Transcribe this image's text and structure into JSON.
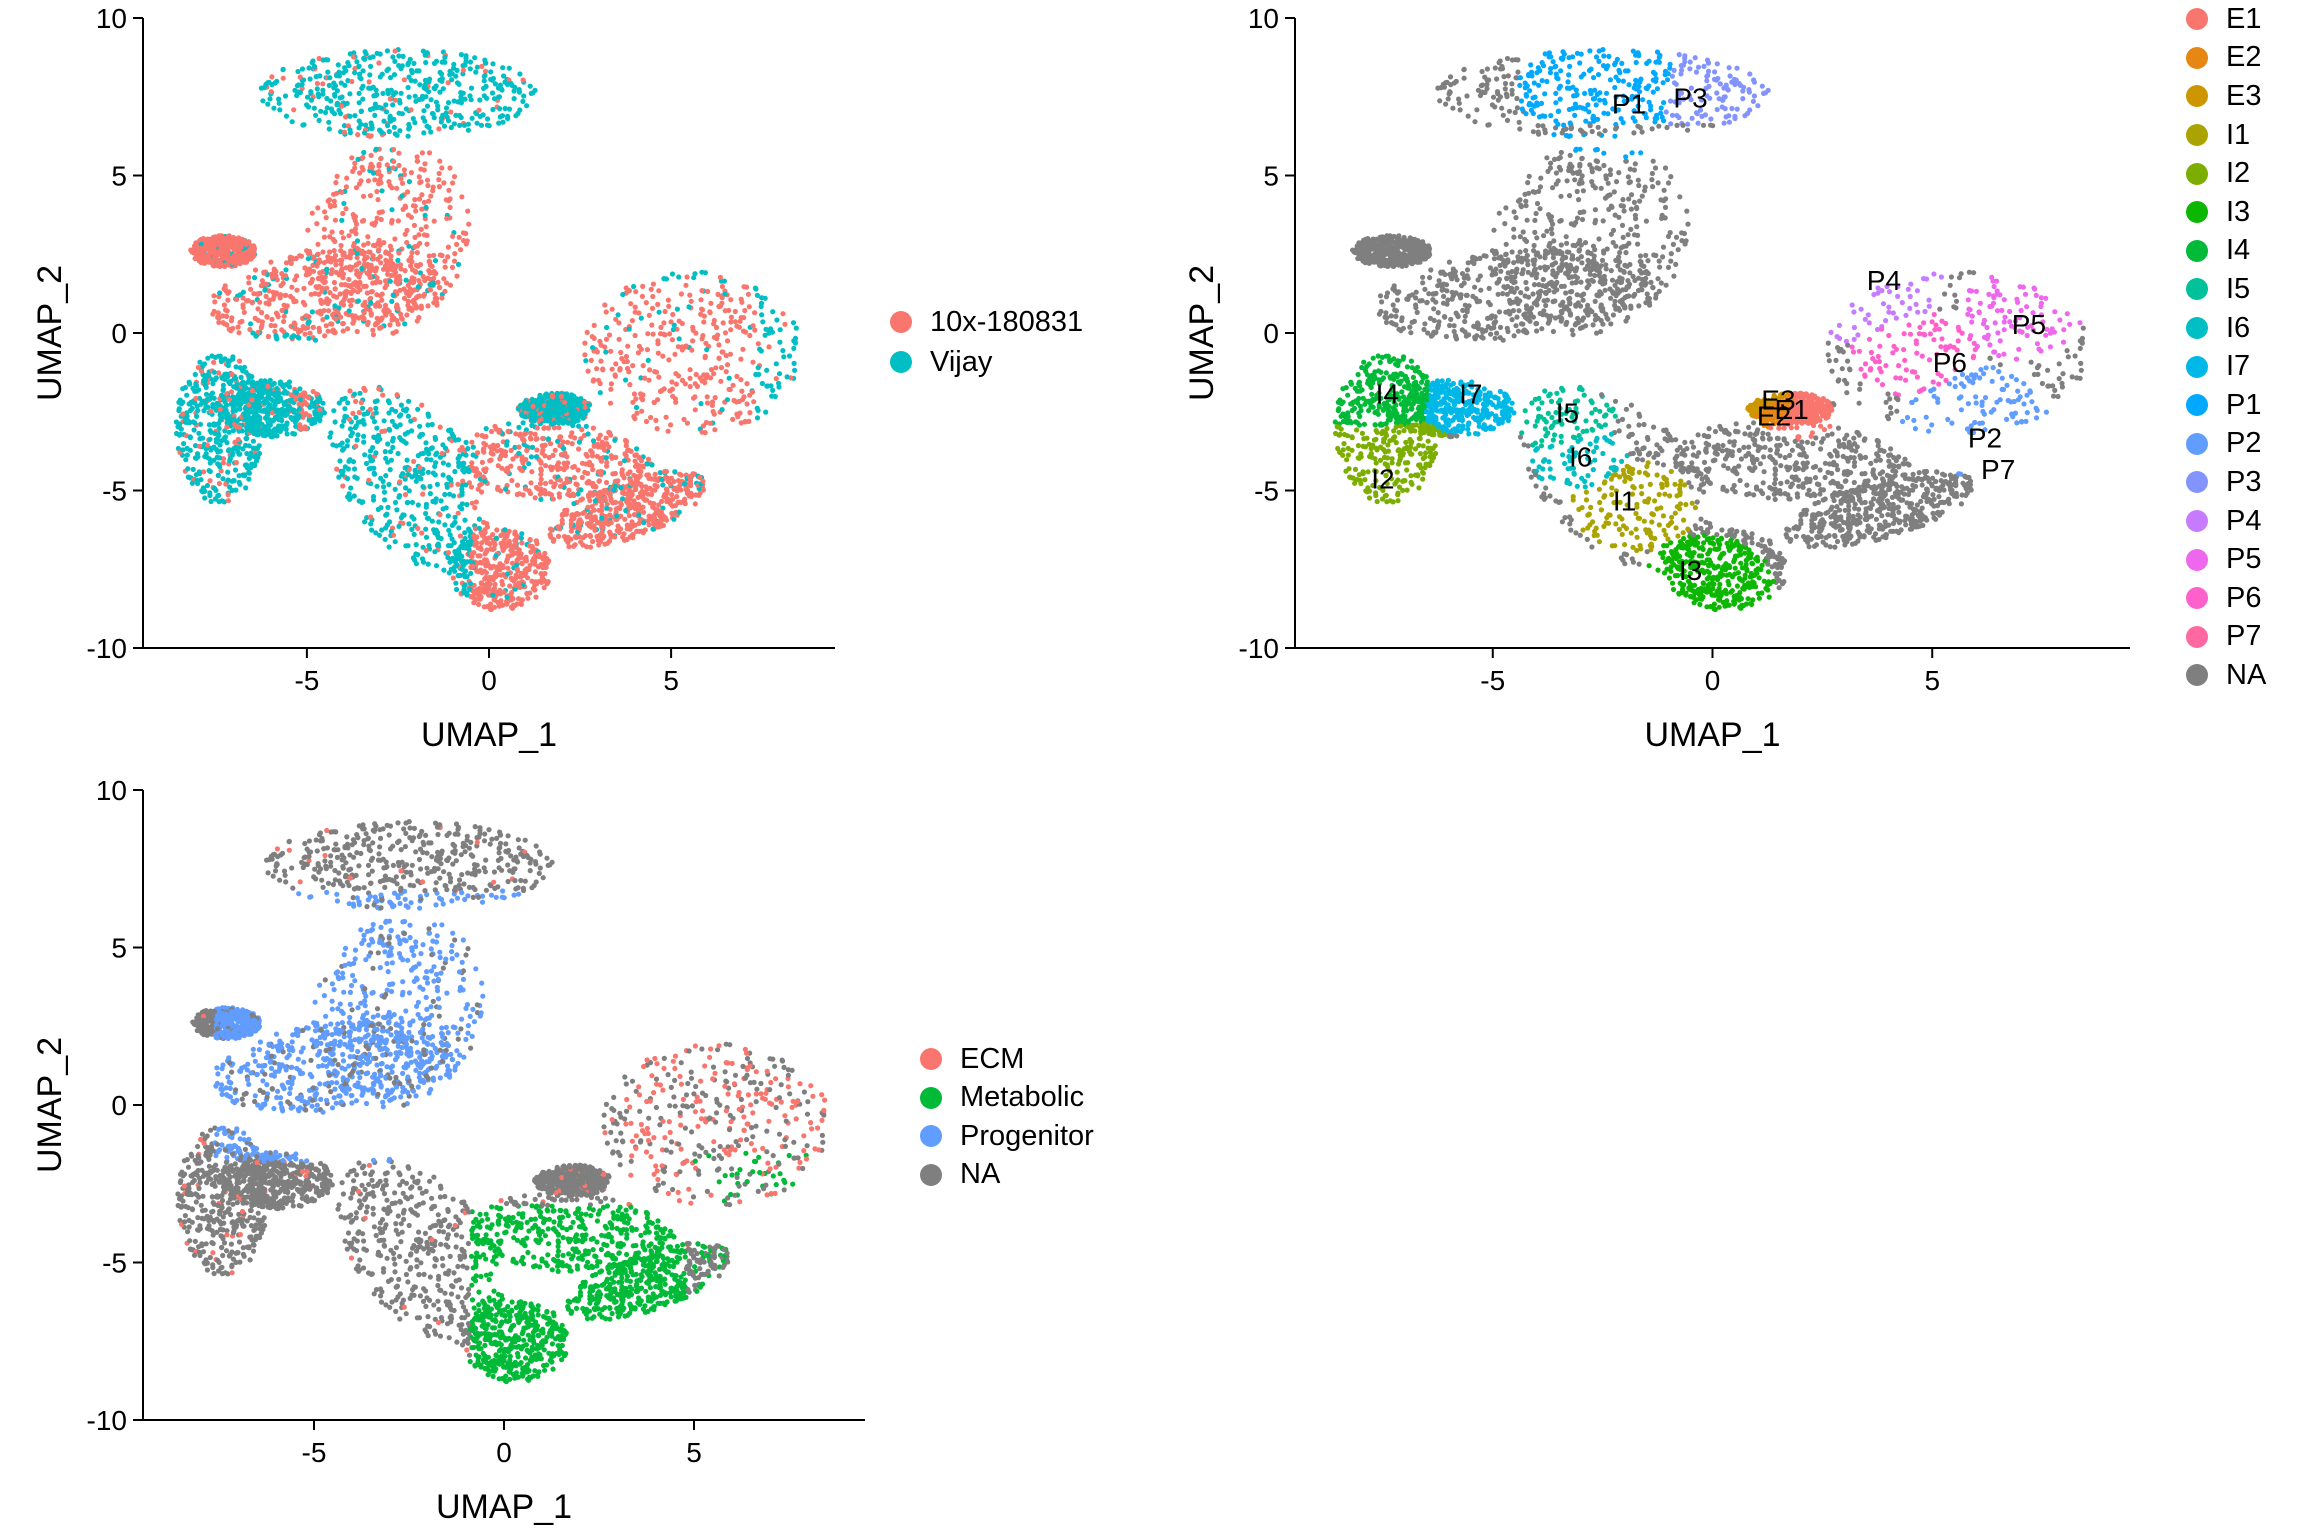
{
  "chart_data": [
    {
      "type": "scatter",
      "title": "",
      "xlabel": "UMAP_1",
      "ylabel": "UMAP_2",
      "xlim": [
        -9.5,
        9.5
      ],
      "ylim": [
        -10,
        10
      ],
      "xticks": [
        "-5",
        "0",
        "5"
      ],
      "yticks": [
        "10",
        "5",
        "0",
        "-5",
        "-10"
      ],
      "grid": false,
      "legend": "right",
      "legend_entries": [
        {
          "label": "10x-180831",
          "color": "#F8766D"
        },
        {
          "label": "Vijay",
          "color": "#00BFC4"
        }
      ]
    },
    {
      "type": "scatter",
      "title": "",
      "xlabel": "UMAP_1",
      "ylabel": "UMAP_2",
      "xlim": [
        -9.5,
        9.5
      ],
      "ylim": [
        -10,
        10
      ],
      "xticks": [
        "-5",
        "0",
        "5"
      ],
      "yticks": [
        "10",
        "5",
        "0",
        "-5",
        "-10"
      ],
      "grid": false,
      "legend": "right",
      "legend_entries": [
        {
          "label": "E1",
          "color": "#F8766D"
        },
        {
          "label": "E2",
          "color": "#E68613"
        },
        {
          "label": "E3",
          "color": "#CD9600"
        },
        {
          "label": "I1",
          "color": "#ABA300"
        },
        {
          "label": "I2",
          "color": "#7CAE00"
        },
        {
          "label": "I3",
          "color": "#0CB702"
        },
        {
          "label": "I4",
          "color": "#00BA38"
        },
        {
          "label": "I5",
          "color": "#00C19A"
        },
        {
          "label": "I6",
          "color": "#00BFC4"
        },
        {
          "label": "I7",
          "color": "#00B8E7"
        },
        {
          "label": "P1",
          "color": "#00A9FF"
        },
        {
          "label": "P2",
          "color": "#619CFF"
        },
        {
          "label": "P3",
          "color": "#8494FF"
        },
        {
          "label": "P4",
          "color": "#C77CFF"
        },
        {
          "label": "P5",
          "color": "#ED68ED"
        },
        {
          "label": "P6",
          "color": "#FF61CC"
        },
        {
          "label": "P7",
          "color": "#FF68A1"
        },
        {
          "label": "NA",
          "color": "#7F7F7F"
        }
      ],
      "cluster_labels": [
        {
          "label": "P1",
          "x": -1.9,
          "y": 7.2
        },
        {
          "label": "P3",
          "x": -0.5,
          "y": 7.4
        },
        {
          "label": "P4",
          "x": 3.9,
          "y": 1.6
        },
        {
          "label": "P5",
          "x": 7.2,
          "y": 0.2
        },
        {
          "label": "P6",
          "x": 5.4,
          "y": -1.0
        },
        {
          "label": "E3",
          "x": 1.5,
          "y": -2.2
        },
        {
          "label": "E1",
          "x": 1.8,
          "y": -2.5
        },
        {
          "label": "E2",
          "x": 1.4,
          "y": -2.7
        },
        {
          "label": "P2",
          "x": 6.2,
          "y": -3.4
        },
        {
          "label": "P7",
          "x": 6.5,
          "y": -4.4
        },
        {
          "label": "I4",
          "x": -7.4,
          "y": -2.0
        },
        {
          "label": "I7",
          "x": -5.5,
          "y": -2.0
        },
        {
          "label": "I5",
          "x": -3.3,
          "y": -2.6
        },
        {
          "label": "I6",
          "x": -3.0,
          "y": -4.0
        },
        {
          "label": "I2",
          "x": -7.5,
          "y": -4.7
        },
        {
          "label": "I1",
          "x": -2.0,
          "y": -5.4
        },
        {
          "label": "I3",
          "x": -0.5,
          "y": -7.6
        }
      ]
    },
    {
      "type": "scatter",
      "title": "",
      "xlabel": "UMAP_1",
      "ylabel": "UMAP_2",
      "xlim": [
        -9.5,
        9.5
      ],
      "ylim": [
        -10,
        10
      ],
      "xticks": [
        "-5",
        "0",
        "5"
      ],
      "yticks": [
        "10",
        "5",
        "0",
        "-5",
        "-10"
      ],
      "grid": false,
      "legend": "right",
      "legend_entries": [
        {
          "label": "ECM",
          "color": "#F8766D"
        },
        {
          "label": "Metabolic",
          "color": "#00BA38"
        },
        {
          "label": "Progenitor",
          "color": "#619CFF"
        },
        {
          "label": "NA",
          "color": "#7F7F7F"
        }
      ]
    }
  ]
}
